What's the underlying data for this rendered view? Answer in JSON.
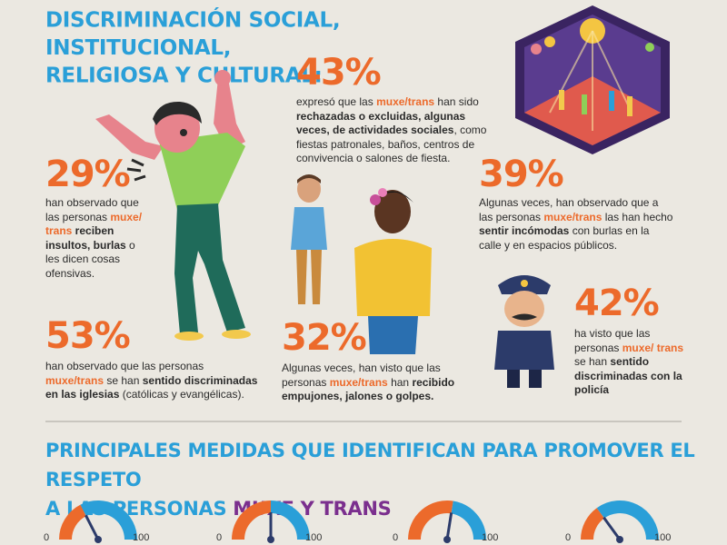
{
  "title": {
    "line1": "DISCRIMINACIÓN SOCIAL, INSTITUCIONAL,",
    "line2": "RELIGIOSA Y CULTURAL:"
  },
  "stat43": {
    "pct": "43%",
    "t1": "expresó que las ",
    "h1": "muxe/trans",
    "t2": " han sido ",
    "b1": "rechazadas o excluidas, algunas veces, de actividades sociales",
    "t3": ", como fiestas patronales, baños, centros de convivencia o salones de fiesta."
  },
  "stat29": {
    "pct": "29%",
    "t1": "han observado que las personas ",
    "h1": "muxe/ trans",
    "b1": " reciben insultos, burlas",
    "t2": " o les dicen cosas ofensivas."
  },
  "stat39": {
    "pct": "39%",
    "t1": "Algunas veces, han observado que a las personas ",
    "h1": "muxe/trans",
    "t2": " las han hecho ",
    "b1": "sentir incómodas",
    "t3": " con burlas en la calle y en espacios públicos."
  },
  "stat53": {
    "pct": "53%",
    "t1": "han observado que las personas ",
    "h1": "muxe/trans",
    "t2": " se han ",
    "b1": "sentido discriminadas en las iglesias",
    "t3": " (católicas y evangélicas)."
  },
  "stat32": {
    "pct": "32%",
    "t1": "Algunas veces, han visto que las personas ",
    "h1": "muxe/trans",
    "t2": " han ",
    "b1": "recibido empujones, jalones o golpes."
  },
  "stat42": {
    "pct": "42%",
    "t1": "ha visto que las personas ",
    "h1": "muxe/ trans",
    "t2": " se han ",
    "b1": "sentido discriminadas con la policía"
  },
  "bottom": {
    "line1": "PRINCIPALES MEDIDAS QUE IDENTIFICAN PARA PROMOVER EL RESPETO",
    "line2a": "A LAS PERSONAS ",
    "line2b": "MUXE Y TRANS"
  },
  "gauges": [
    {
      "min": "0",
      "max": "100",
      "level": 0.35
    },
    {
      "min": "0",
      "max": "100",
      "level": 0.5
    },
    {
      "min": "0",
      "max": "100",
      "level": 0.55
    },
    {
      "min": "0",
      "max": "100",
      "level": 0.3
    }
  ],
  "colors": {
    "accent_blue": "#2a9fd8",
    "accent_orange": "#ec6a2b",
    "accent_purple": "#7b2f8e",
    "background": "#ebe8e1"
  }
}
